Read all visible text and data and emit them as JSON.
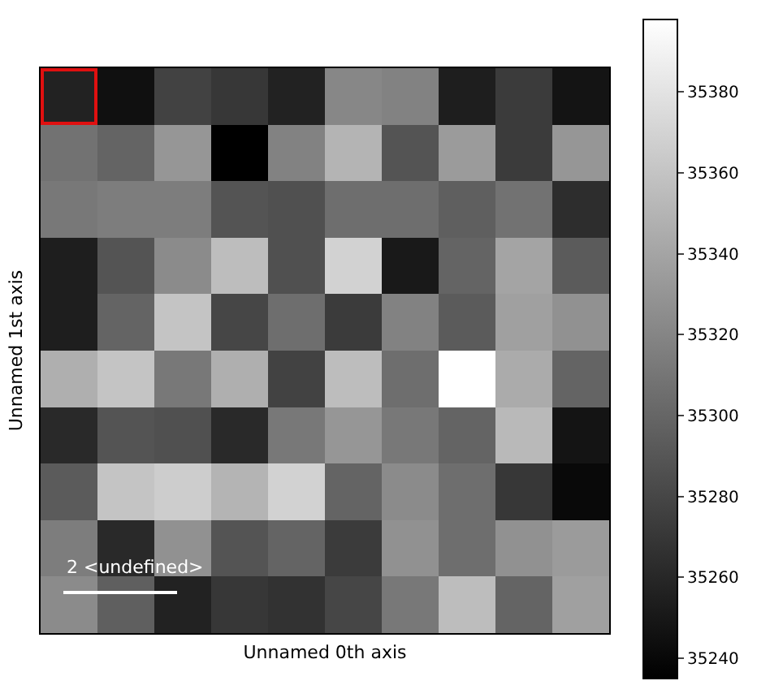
{
  "chart_data": {
    "type": "heatmap",
    "xlabel": "Unnamed 0th axis",
    "ylabel": "Unnamed 1st axis",
    "categories": [
      null,
      null,
      null,
      null,
      null,
      null,
      null,
      null,
      null,
      null
    ],
    "y_categories": [
      null,
      null,
      null,
      null,
      null,
      null,
      null,
      null,
      null,
      null
    ],
    "cells": [
      [
        35257,
        35245,
        35277,
        35270,
        35257,
        35321,
        35318,
        35254,
        35273,
        35248
      ],
      [
        35308,
        35299,
        35331,
        35235,
        35318,
        35350,
        35289,
        35334,
        35273,
        35331
      ],
      [
        35312,
        35315,
        35315,
        35289,
        35286,
        35305,
        35305,
        35296,
        35308,
        35264
      ],
      [
        35254,
        35289,
        35324,
        35356,
        35286,
        35369,
        35251,
        35299,
        35340,
        35293
      ],
      [
        35254,
        35299,
        35360,
        35280,
        35305,
        35273,
        35318,
        35293,
        35337,
        35328
      ],
      [
        35347,
        35360,
        35312,
        35347,
        35277,
        35356,
        35305,
        35398,
        35344,
        35299
      ],
      [
        35261,
        35289,
        35286,
        35261,
        35312,
        35331,
        35312,
        35299,
        35353,
        35248
      ],
      [
        35293,
        35360,
        35366,
        35350,
        35369,
        35299,
        35324,
        35305,
        35270,
        35241
      ],
      [
        35315,
        35261,
        35328,
        35289,
        35299,
        35273,
        35328,
        35305,
        35328,
        35334
      ],
      [
        35324,
        35296,
        35257,
        35270,
        35267,
        35280,
        35312,
        35356,
        35299,
        35337
      ]
    ],
    "colors": [
      "#000000",
      "#ffffff"
    ],
    "clim": [
      35235,
      35398
    ],
    "cticks": [
      35240,
      35260,
      35280,
      35300,
      35320,
      35340,
      35360,
      35380
    ],
    "annotations": [
      "2 <undefined>"
    ]
  }
}
